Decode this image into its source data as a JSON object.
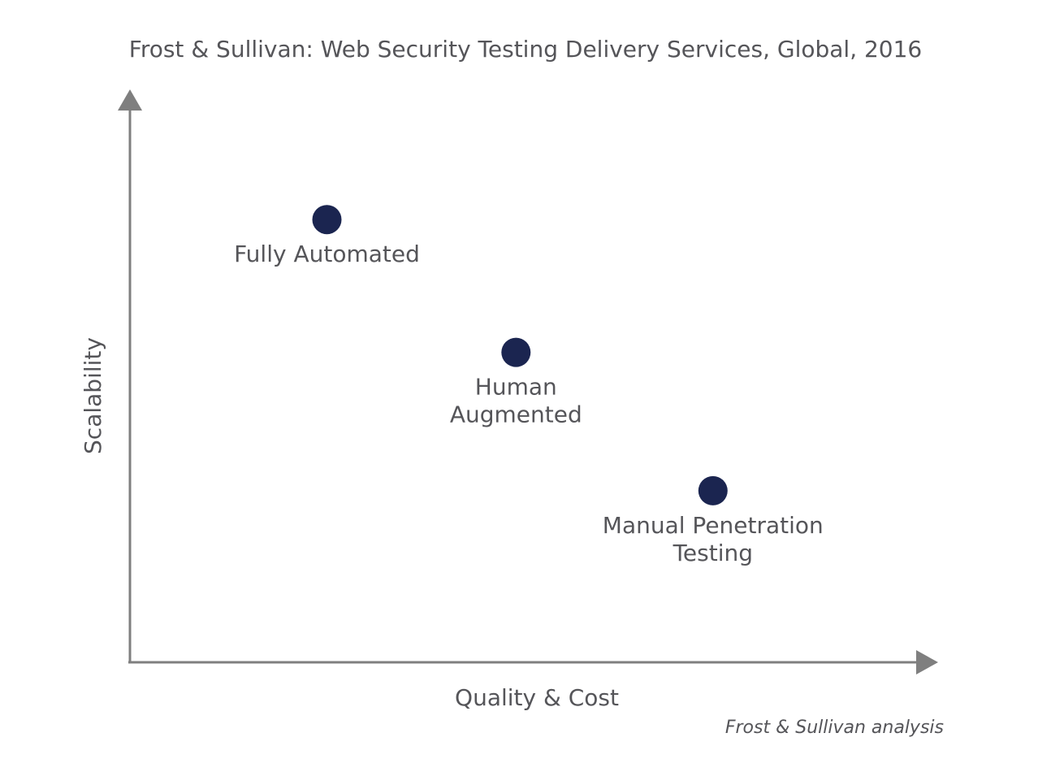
{
  "chart_data": {
    "type": "scatter",
    "title": "Frost & Sullivan: Web Security Testing Delivery Services, Global, 2016",
    "xlabel": "Quality & Cost",
    "ylabel": "Scalability",
    "source_note": "Frost & Sullivan analysis",
    "grid": false,
    "legend": "none",
    "xlim": [
      0,
      10
    ],
    "ylim": [
      0,
      10
    ],
    "marker_color": "#1b2550",
    "axis_color": "#7f7f7f",
    "text_color": "#555559",
    "points": [
      {
        "label_lines": [
          "Fully Automated"
        ],
        "x": 2.5,
        "y": 8.0
      },
      {
        "label_lines": [
          "Human",
          "Augmented"
        ],
        "x": 4.9,
        "y": 5.6
      },
      {
        "label_lines": [
          "Manual Penetration",
          "Testing"
        ],
        "x": 7.4,
        "y": 3.1
      }
    ]
  }
}
